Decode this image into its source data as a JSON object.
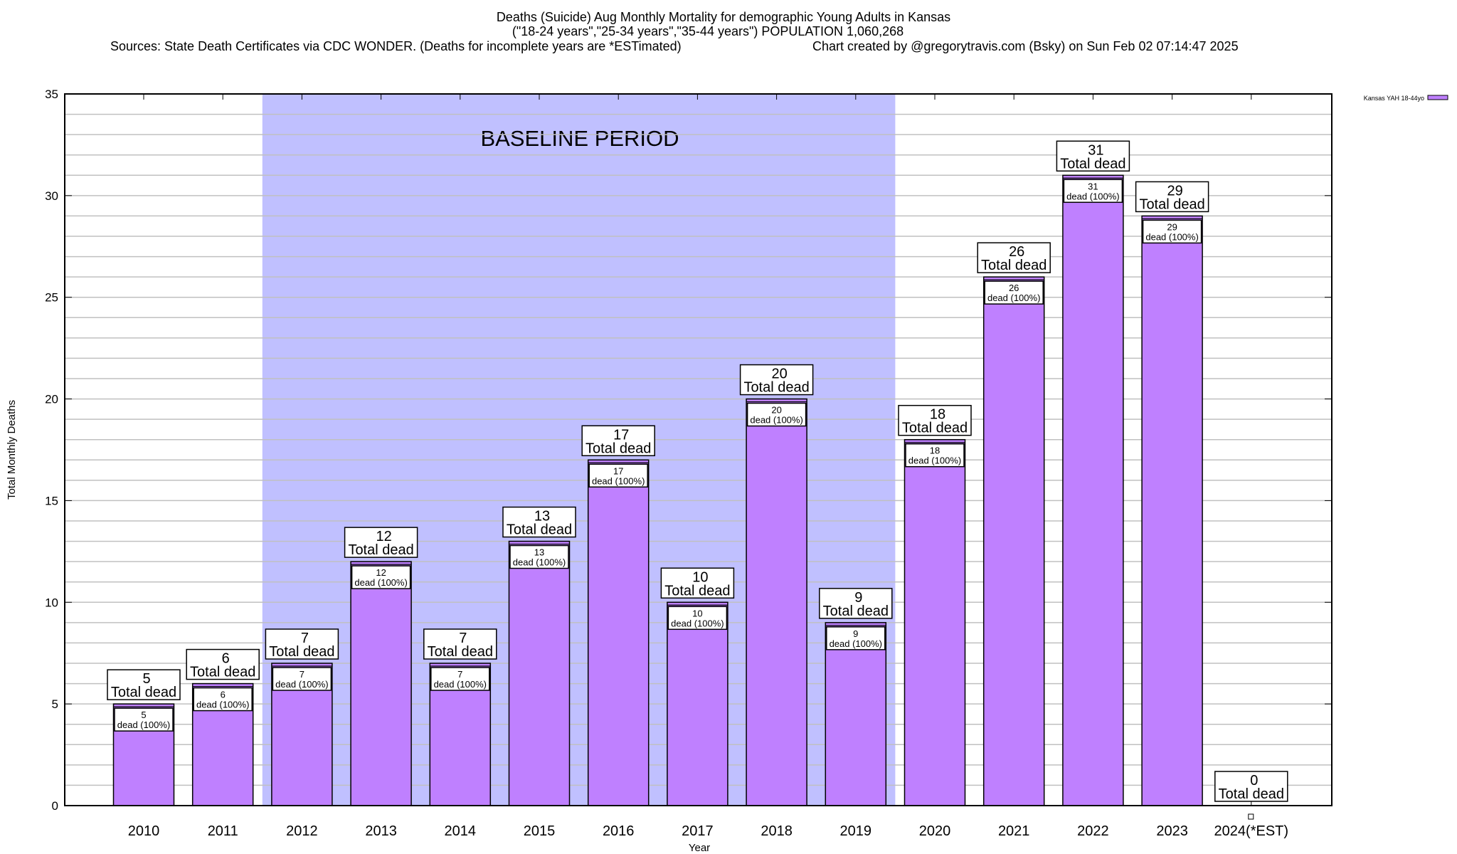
{
  "chart_data": {
    "type": "bar",
    "title_lines": [
      "Deaths (Suicide) Aug Monthly Mortality for demographic Young Adults in Kansas",
      "(\"18-24 years\",\"25-34 years\",\"35-44 years\") POPULATION 1,060,268"
    ],
    "sources": "Sources: State Death Certificates via CDC WONDER. (Deaths for incomplete years are *ESTimated)",
    "credit": "Chart created by @gregorytravis.com (Bsky) on Sun Feb 02 07:14:47 2025",
    "xlabel": "Year",
    "ylabel": "Total Monthly Deaths",
    "ylim": [
      0,
      35
    ],
    "yticks": [
      0,
      5,
      10,
      15,
      20,
      25,
      30,
      35
    ],
    "grid": true,
    "categories": [
      "2010",
      "2011",
      "2012",
      "2013",
      "2014",
      "2015",
      "2016",
      "2017",
      "2018",
      "2019",
      "2020",
      "2021",
      "2022",
      "2023",
      "2024(*EST)"
    ],
    "series": [
      {
        "name": "Kansas YAH 18-44yo",
        "color": "#bf80ff",
        "values": [
          5,
          6,
          7,
          12,
          7,
          13,
          17,
          10,
          20,
          9,
          18,
          26,
          31,
          29,
          0
        ]
      }
    ],
    "total_label_suffix": "Total dead",
    "inner_label_suffix": "dead (100%)",
    "baseline": {
      "label": "BASELINE PERIOD",
      "from": "2012",
      "to": "2019",
      "color": "#c0c0ff"
    },
    "legend_placement": "top-right"
  }
}
